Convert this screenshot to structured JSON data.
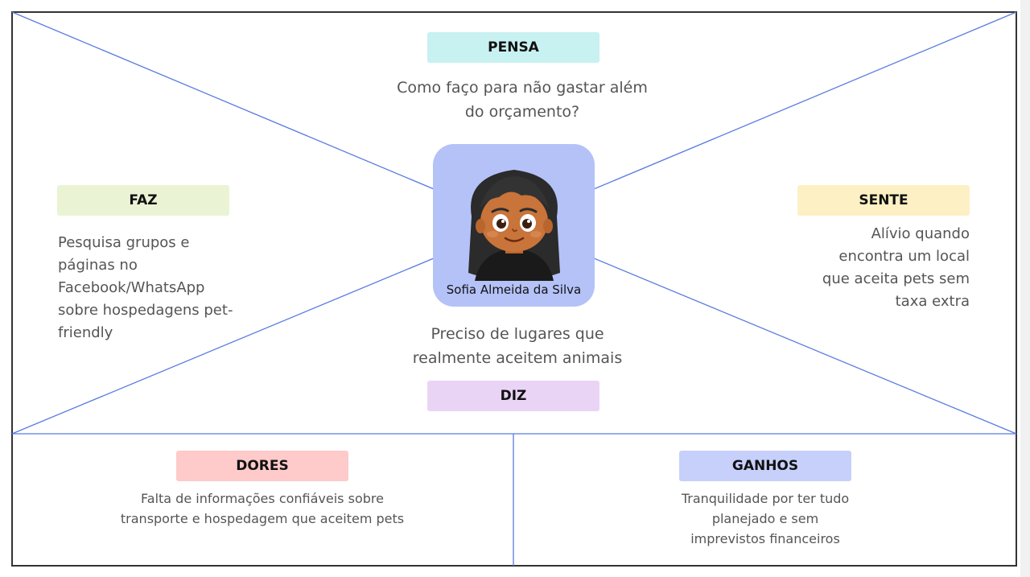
{
  "colors": {
    "frame": "#333333",
    "line": "#5a7be0",
    "pensa": "#c8f1f1",
    "faz": "#eaf4d4",
    "sente": "#fcf0c4",
    "diz": "#ead4f6",
    "dores": "#fecaca",
    "ganhos": "#c6d0fb",
    "persona_bg": "#b4c2f8"
  },
  "pensa": {
    "label": "PENSA",
    "lines": [
      "Como faço para não gastar além",
      "do orçamento?"
    ]
  },
  "faz": {
    "label": "FAZ",
    "lines": [
      "Pesquisa grupos e",
      "páginas no",
      "Facebook/WhatsApp",
      "sobre hospedagens pet-",
      "friendly"
    ]
  },
  "sente": {
    "label": "SENTE",
    "lines": [
      "Alívio quando",
      "encontra um local",
      "que aceita pets sem",
      "taxa extra"
    ]
  },
  "diz": {
    "label": "DIZ",
    "lines": [
      "Preciso de lugares que",
      "realmente aceitem animais"
    ]
  },
  "persona": {
    "name": "Sofia Almeida da Silva",
    "icon": "girl-avatar-icon"
  },
  "dores": {
    "label": "DORES",
    "lines": [
      "Falta de informações confiáveis sobre",
      "transporte e hospedagem que aceitem pets"
    ]
  },
  "ganhos": {
    "label": "GANHOS",
    "lines": [
      "Tranquilidade por ter tudo",
      "planejado e sem",
      "imprevistos financeiros"
    ]
  }
}
